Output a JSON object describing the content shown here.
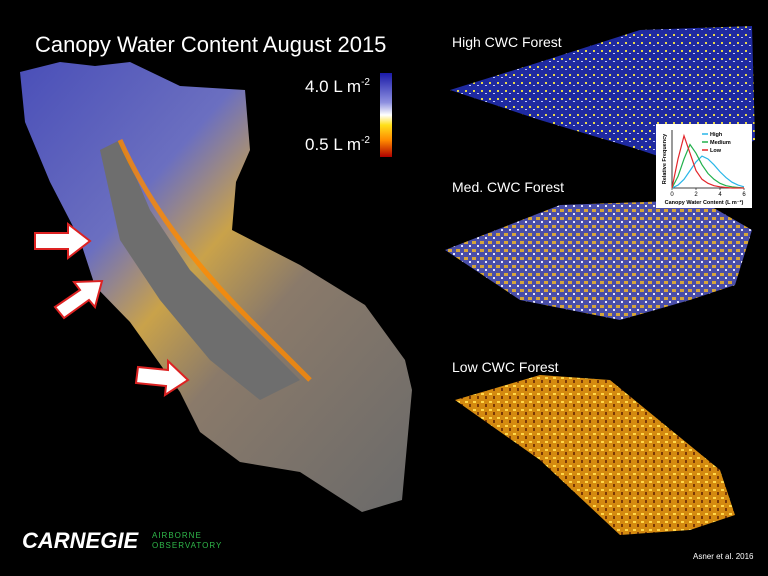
{
  "title": "Canopy Water Content August 2015",
  "legend": {
    "max": {
      "text": "4.0 L m",
      "sup": "-2"
    },
    "min": {
      "text": "0.5 L m",
      "sup": "-2"
    }
  },
  "panels": [
    "High CWC Forest",
    "Med. CWC Forest",
    "Low CWC Forest"
  ],
  "logo": {
    "name": "CARNEGIE",
    "line1": "AIRBORNE",
    "line2": "OBSERVATORY"
  },
  "credit": "Asner et al. 2016",
  "chart_data": {
    "type": "line",
    "xlabel": "Canopy Water Content (L m⁻²)",
    "ylabel": "Relative Frequency",
    "x": [
      0,
      0.5,
      1,
      1.5,
      2,
      2.5,
      3,
      3.5,
      4,
      4.5,
      5,
      5.5,
      6
    ],
    "xlim": [
      0,
      6
    ],
    "xticks": [
      0,
      2,
      4,
      6
    ],
    "ylim": [
      0,
      1
    ],
    "series": [
      {
        "name": "High",
        "color": "#29b6e8",
        "values": [
          0,
          0.05,
          0.15,
          0.3,
          0.45,
          0.55,
          0.5,
          0.4,
          0.28,
          0.18,
          0.1,
          0.05,
          0.02
        ]
      },
      {
        "name": "Medium",
        "color": "#22b14c",
        "values": [
          0,
          0.2,
          0.5,
          0.75,
          0.6,
          0.4,
          0.25,
          0.15,
          0.08,
          0.04,
          0.02,
          0.01,
          0
        ]
      },
      {
        "name": "Low",
        "color": "#e3262b",
        "values": [
          0,
          0.5,
          0.9,
          0.6,
          0.3,
          0.15,
          0.08,
          0.04,
          0.02,
          0.01,
          0,
          0,
          0
        ]
      }
    ]
  }
}
